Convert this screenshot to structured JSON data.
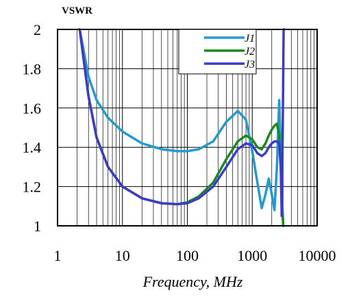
{
  "chart_data": {
    "type": "line",
    "title": "",
    "ylabel": "VSWR",
    "xlabel": "Frequency, MHz",
    "xscale": "log",
    "xlim": [
      1,
      10000
    ],
    "ylim": [
      1,
      2
    ],
    "xticks": [
      1,
      10,
      100,
      1000,
      10000
    ],
    "xtick_labels": [
      "1",
      "10",
      "100",
      "1000",
      "10000"
    ],
    "yticks": [
      1,
      1.2,
      1.4,
      1.6,
      1.8,
      2
    ],
    "ytick_labels": [
      "1",
      "1.2",
      "1.4",
      "1.6",
      "1.8",
      "2"
    ],
    "grid": true,
    "legend_position": "top-right",
    "series": [
      {
        "name": "J1",
        "color": "#1f9bd0",
        "x": [
          2.2,
          3,
          4,
          6,
          10,
          20,
          40,
          70,
          100,
          150,
          250,
          400,
          600,
          800,
          1000,
          1200,
          1400,
          1600,
          1800,
          2000,
          2200,
          2400,
          2600,
          2750,
          2900,
          3000
        ],
        "y": [
          2.0,
          1.76,
          1.64,
          1.55,
          1.48,
          1.42,
          1.39,
          1.38,
          1.38,
          1.39,
          1.43,
          1.53,
          1.585,
          1.54,
          1.38,
          1.22,
          1.09,
          1.16,
          1.24,
          1.16,
          1.08,
          1.3,
          1.64,
          1.4,
          1.1,
          1.0
        ]
      },
      {
        "name": "J2",
        "color": "#1a8a1a",
        "x": [
          2.2,
          3,
          4,
          6,
          10,
          20,
          40,
          70,
          100,
          150,
          250,
          400,
          600,
          800,
          1000,
          1200,
          1400,
          1600,
          1800,
          2000,
          2200,
          2400,
          2600,
          2750,
          2900,
          3000
        ],
        "y": [
          2.0,
          1.66,
          1.45,
          1.3,
          1.2,
          1.14,
          1.115,
          1.11,
          1.12,
          1.15,
          1.22,
          1.34,
          1.43,
          1.46,
          1.44,
          1.4,
          1.39,
          1.42,
          1.46,
          1.49,
          1.51,
          1.52,
          1.46,
          1.3,
          1.1,
          1.0
        ]
      },
      {
        "name": "J3",
        "color": "#3a3ad0",
        "x": [
          2.2,
          3,
          4,
          6,
          10,
          20,
          40,
          70,
          100,
          150,
          250,
          400,
          600,
          800,
          1000,
          1200,
          1400,
          1600,
          1800,
          2000,
          2200,
          2400,
          2600,
          2750,
          2850,
          2950,
          3050,
          3100
        ],
        "y": [
          2.0,
          1.66,
          1.45,
          1.3,
          1.2,
          1.14,
          1.115,
          1.11,
          1.115,
          1.14,
          1.2,
          1.3,
          1.39,
          1.42,
          1.41,
          1.37,
          1.355,
          1.37,
          1.4,
          1.42,
          1.43,
          1.43,
          1.42,
          1.3,
          1.05,
          1.5,
          2.0,
          2.0
        ]
      }
    ]
  }
}
